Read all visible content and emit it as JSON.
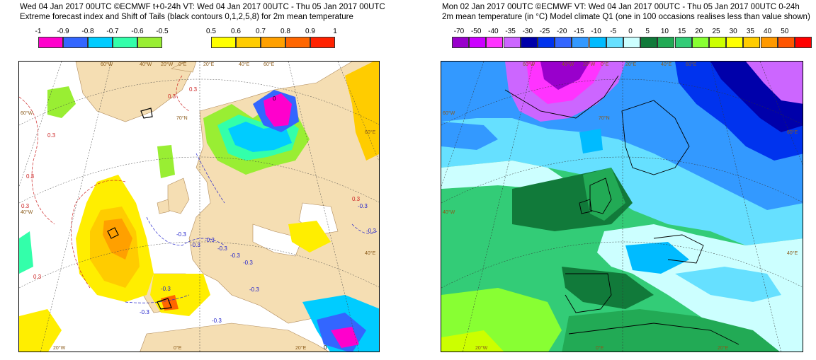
{
  "left_panel": {
    "title_line1": "Wed 04 Jan 2017 00UTC ©ECMWF t+0-24h  VT: Wed 04 Jan 2017 00UTC - Thu 05 Jan 2017 00UTC",
    "title_line2": "Extreme forecast index and Shift of Tails (black contours 0,1,2,5,8) for 2m mean temperature",
    "negative_scale": {
      "labels": [
        "-1",
        "-0.9",
        "-0.8",
        "-0.7",
        "-0.6",
        "-0.5"
      ],
      "colors": [
        "#ff00cc",
        "#3366ff",
        "#00ccff",
        "#33ffaa",
        "#99ee33"
      ]
    },
    "positive_scale": {
      "labels": [
        "0.5",
        "0.6",
        "0.7",
        "0.8",
        "0.9",
        "1"
      ],
      "colors": [
        "#ffff00",
        "#ffcc00",
        "#ffa000",
        "#ff6600",
        "#ff2200"
      ]
    },
    "geo_labels": {
      "top": [
        "60°W",
        "40°W",
        "20°W",
        "0°E",
        "20°E",
        "40°E",
        "60°E"
      ],
      "left": [
        "60°W",
        "40°W"
      ],
      "right": [
        "60°E",
        "40°E"
      ],
      "bottom": [
        "20°W",
        "0°E",
        "20°E"
      ],
      "inner": [
        "70°N"
      ]
    },
    "contour_labels": [
      "-0.3",
      "-0.3",
      "-0.3",
      "-0.3",
      "-0.3",
      "-0.3",
      "-0.3",
      "-0.3",
      "-0.3",
      "-0.3",
      "-0.3",
      "-0.3",
      "0.3",
      "0.3",
      "0.3",
      "0.3",
      "0.3",
      "0.3",
      "0.3",
      "0",
      "0"
    ]
  },
  "right_panel": {
    "title_line1": "Mon 02 Jan 2017 00UTC ©ECMWF VT: Wed 04 Jan 2017 00UTC - Thu 05 Jan 2017 00UTC   0-24h",
    "title_line2": "2m mean temperature (in °C)  Model climate Q1 (one in 100 occasions realises less than value shown)",
    "scale": {
      "labels": [
        "-70",
        "-50",
        "-40",
        "-35",
        "-30",
        "-25",
        "-20",
        "-15",
        "-10",
        "-5",
        "0",
        "5",
        "10",
        "15",
        "20",
        "25",
        "30",
        "35",
        "40",
        "50"
      ],
      "colors": [
        "#9900cc",
        "#cc00ff",
        "#ff33ff",
        "#cc66ff",
        "#0000aa",
        "#0033ee",
        "#3366ff",
        "#3399ff",
        "#00bbff",
        "#66e0ff",
        "#ccffff",
        "#117a3a",
        "#22aa55",
        "#33cc77",
        "#88ff33",
        "#ccff00",
        "#ffff00",
        "#ffcc00",
        "#ff9900",
        "#ff5500",
        "#ff0000"
      ]
    },
    "geo_labels": {
      "top": [
        "60°W",
        "40°W",
        "20°W",
        "0°E",
        "20°E",
        "40°E",
        "60°E"
      ],
      "left": [
        "60°W",
        "40°W"
      ],
      "right": [
        "60°E",
        "40°E"
      ],
      "bottom": [
        "20°W",
        "0°E",
        "20°E"
      ],
      "inner": [
        "70°N"
      ]
    }
  }
}
